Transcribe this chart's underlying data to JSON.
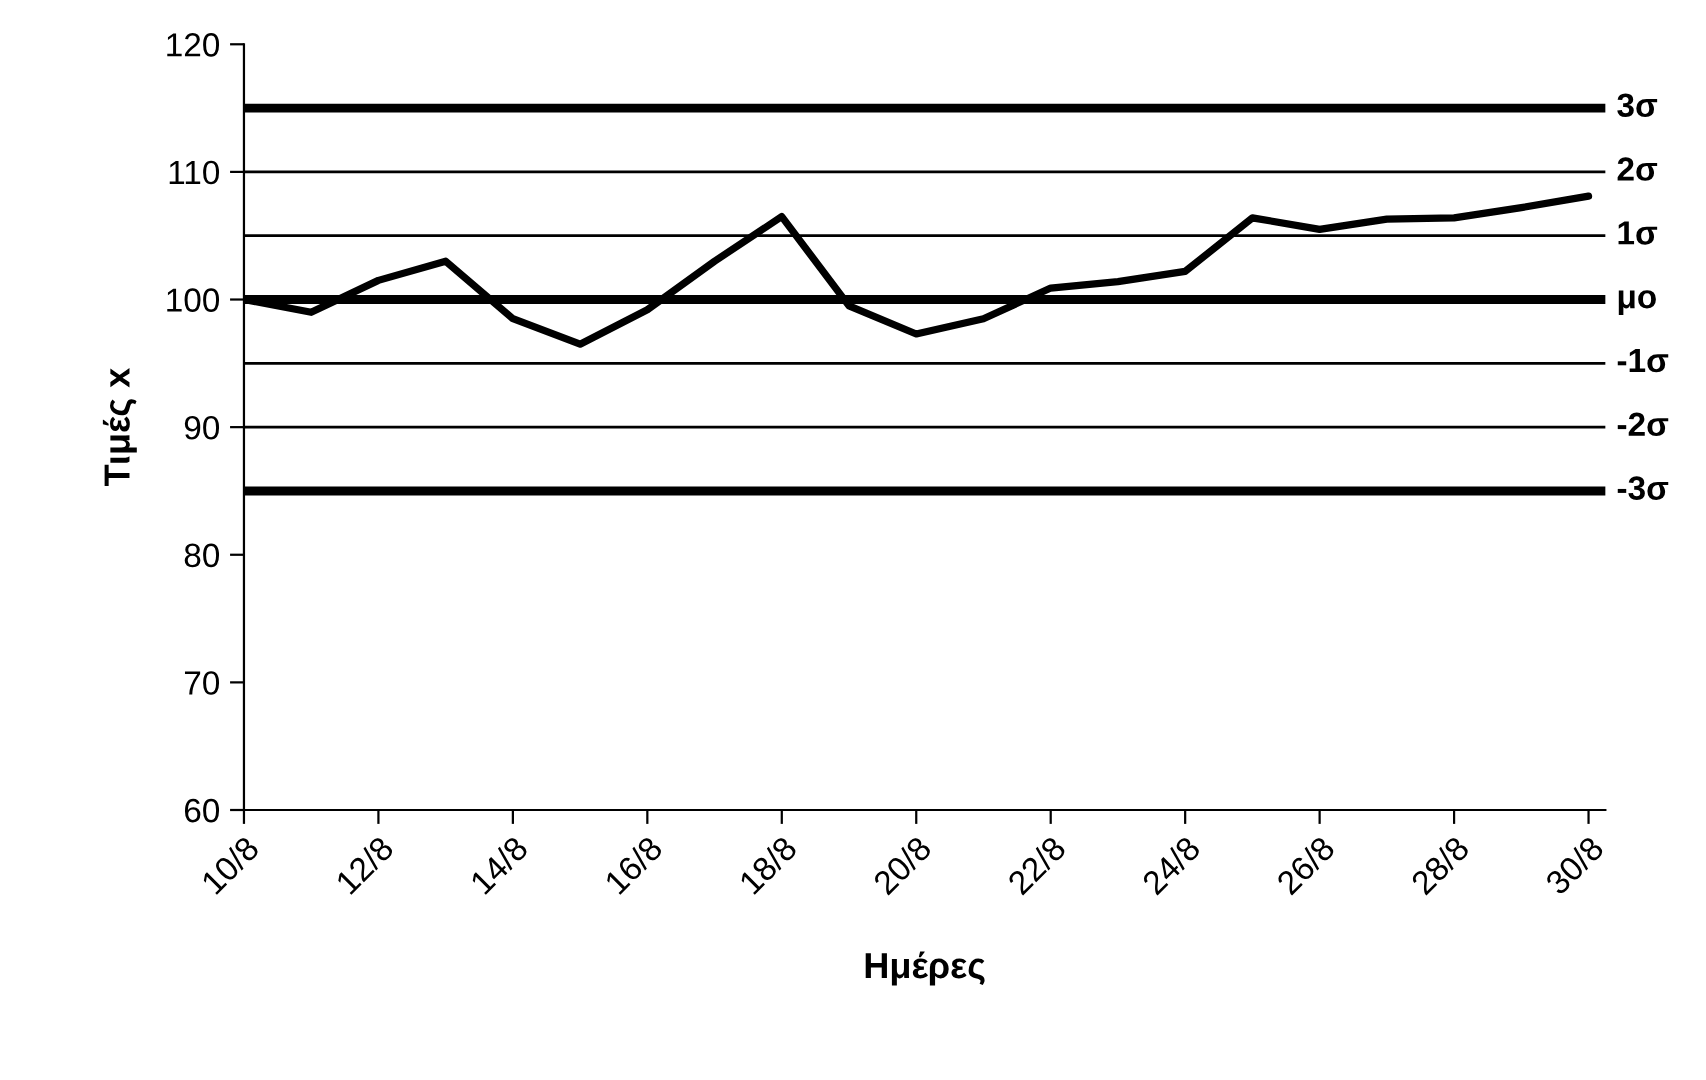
{
  "chart_data": {
    "type": "line",
    "xlabel": "Ημέρες",
    "ylabel": "Τιμές x",
    "categories": [
      "10/8",
      null,
      "12/8",
      null,
      "14/8",
      null,
      "16/8",
      null,
      "18/8",
      null,
      "20/8",
      null,
      "22/8",
      null,
      "24/8",
      null,
      "26/8",
      null,
      "28/8",
      null,
      "30/8"
    ],
    "series": [
      {
        "color": "#000000",
        "values": [
          100,
          99,
          101.5,
          103,
          98.5,
          96.5,
          99.2,
          103,
          106.5,
          99.5,
          97.3,
          98.5,
          100.9,
          101.4,
          102.2,
          106.4,
          105.5,
          106.3,
          106.4,
          107.2,
          108.1
        ]
      }
    ],
    "ylim": [
      60,
      120
    ],
    "yticks": [
      60,
      70,
      80,
      90,
      100,
      110,
      120
    ],
    "ref_lines": [
      {
        "axis": "y",
        "value": 115,
        "label": "3σ",
        "color": "#000000"
      },
      {
        "axis": "y",
        "value": 110,
        "label": "2σ",
        "color": "#000000"
      },
      {
        "axis": "y",
        "value": 105,
        "label": "1σ",
        "color": "#000000"
      },
      {
        "axis": "y",
        "value": 100,
        "label": "μο",
        "color": "#000000"
      },
      {
        "axis": "y",
        "value": 95,
        "label": "-1σ",
        "color": "#000000"
      },
      {
        "axis": "y",
        "value": 90,
        "label": "-2σ",
        "color": "#000000"
      },
      {
        "axis": "y",
        "value": 85,
        "label": "-3σ",
        "color": "#000000"
      }
    ],
    "grid": false,
    "marker": "none",
    "line_style": "solid"
  }
}
